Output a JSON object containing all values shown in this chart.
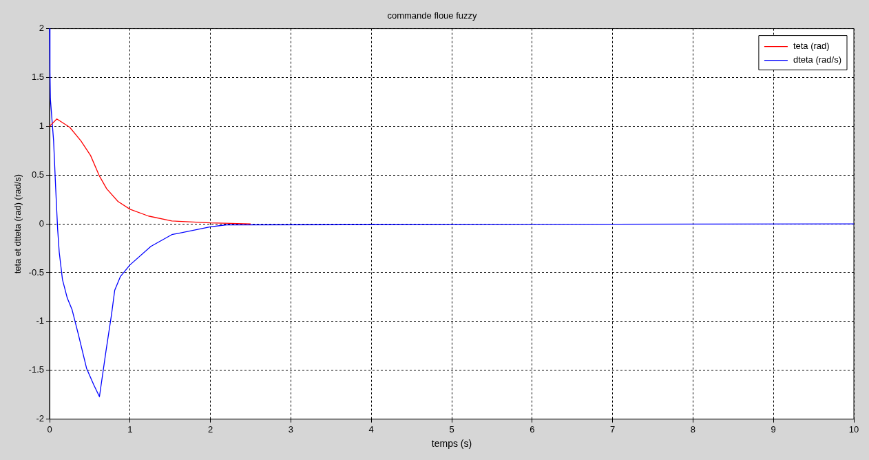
{
  "chart_data": {
    "type": "line",
    "title": "commande floue fuzzy",
    "xlabel": "temps (s)",
    "ylabel": "teta et dtteta (rad) (rad/s)",
    "xlim": [
      0,
      10
    ],
    "xticks": [
      0,
      1,
      2,
      3,
      4,
      5,
      6,
      7,
      8,
      9,
      10
    ],
    "ylim": [
      -2,
      2
    ],
    "yticks": [
      -2,
      -1.5,
      -1,
      -0.5,
      0,
      0.5,
      1,
      1.5,
      2
    ],
    "grid": true,
    "legend": "top right",
    "marker": "none",
    "line_style": "solid",
    "series": [
      {
        "name": "teta (rad)",
        "color": "#ff0000",
        "x": [
          0,
          0.09,
          0.25,
          0.39,
          0.51,
          0.62,
          0.71,
          0.85,
          1.0,
          1.23,
          1.52,
          2.0,
          2.5
        ],
        "values": [
          1.0,
          1.075,
          0.99,
          0.85,
          0.7,
          0.49,
          0.36,
          0.23,
          0.15,
          0.08,
          0.03,
          0.01,
          0
        ]
      },
      {
        "name": "dteta (rad/s)",
        "color": "#0000ff",
        "x": [
          0,
          0.005,
          0.01,
          0.05,
          0.075,
          0.1,
          0.12,
          0.16,
          0.22,
          0.28,
          0.36,
          0.46,
          0.55,
          0.62,
          0.7,
          0.77,
          0.81,
          0.88,
          1.0,
          1.26,
          1.52,
          2.0,
          2.2,
          10
        ],
        "values": [
          2,
          1.56,
          1.28,
          0.85,
          0.38,
          -0.05,
          -0.29,
          -0.57,
          -0.76,
          -0.88,
          -1.14,
          -1.48,
          -1.65,
          -1.77,
          -1.31,
          -0.93,
          -0.68,
          -0.54,
          -0.42,
          -0.23,
          -0.11,
          -0.03,
          -0.01,
          0
        ]
      }
    ]
  }
}
